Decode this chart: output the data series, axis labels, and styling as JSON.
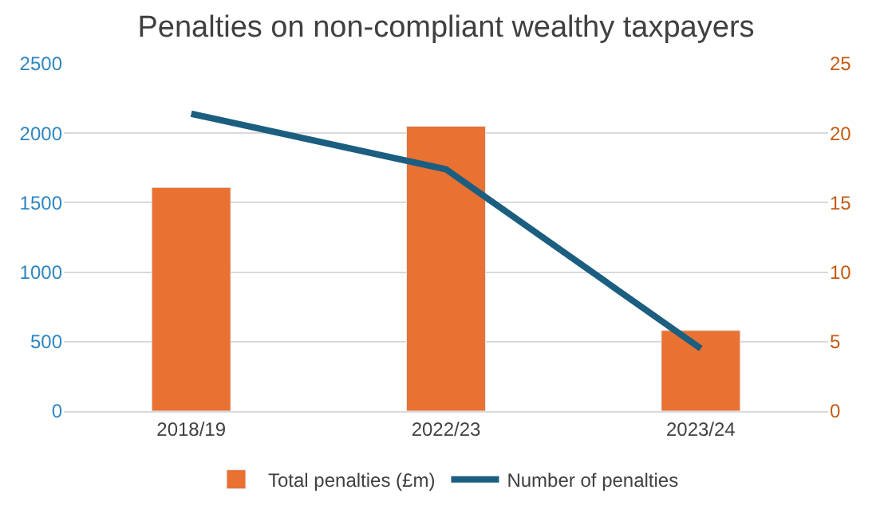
{
  "chart_data": {
    "type": "bar",
    "title": "Penalties on non-compliant wealthy taxpayers",
    "categories": [
      "2018/19",
      "2022/23",
      "2023/24"
    ],
    "series": [
      {
        "name": "Total penalties (£m)",
        "color": "#e97132",
        "values": [
          1610,
          2050,
          580
        ]
      },
      {
        "name": "Number of penalties",
        "color": "#1b5e80",
        "type": "line",
        "axis": "y2",
        "values": [
          21.4,
          17.4,
          4.5
        ]
      }
    ],
    "ylim": [
      0,
      2500
    ],
    "yticks": [
      0,
      500,
      1000,
      1500,
      2000,
      2500
    ],
    "y2lim": [
      0,
      25
    ],
    "y2ticks": [
      0,
      5,
      10,
      15,
      20,
      25
    ],
    "grid": "y",
    "legend": "bottom",
    "marker": "none",
    "line_style": "solid"
  }
}
